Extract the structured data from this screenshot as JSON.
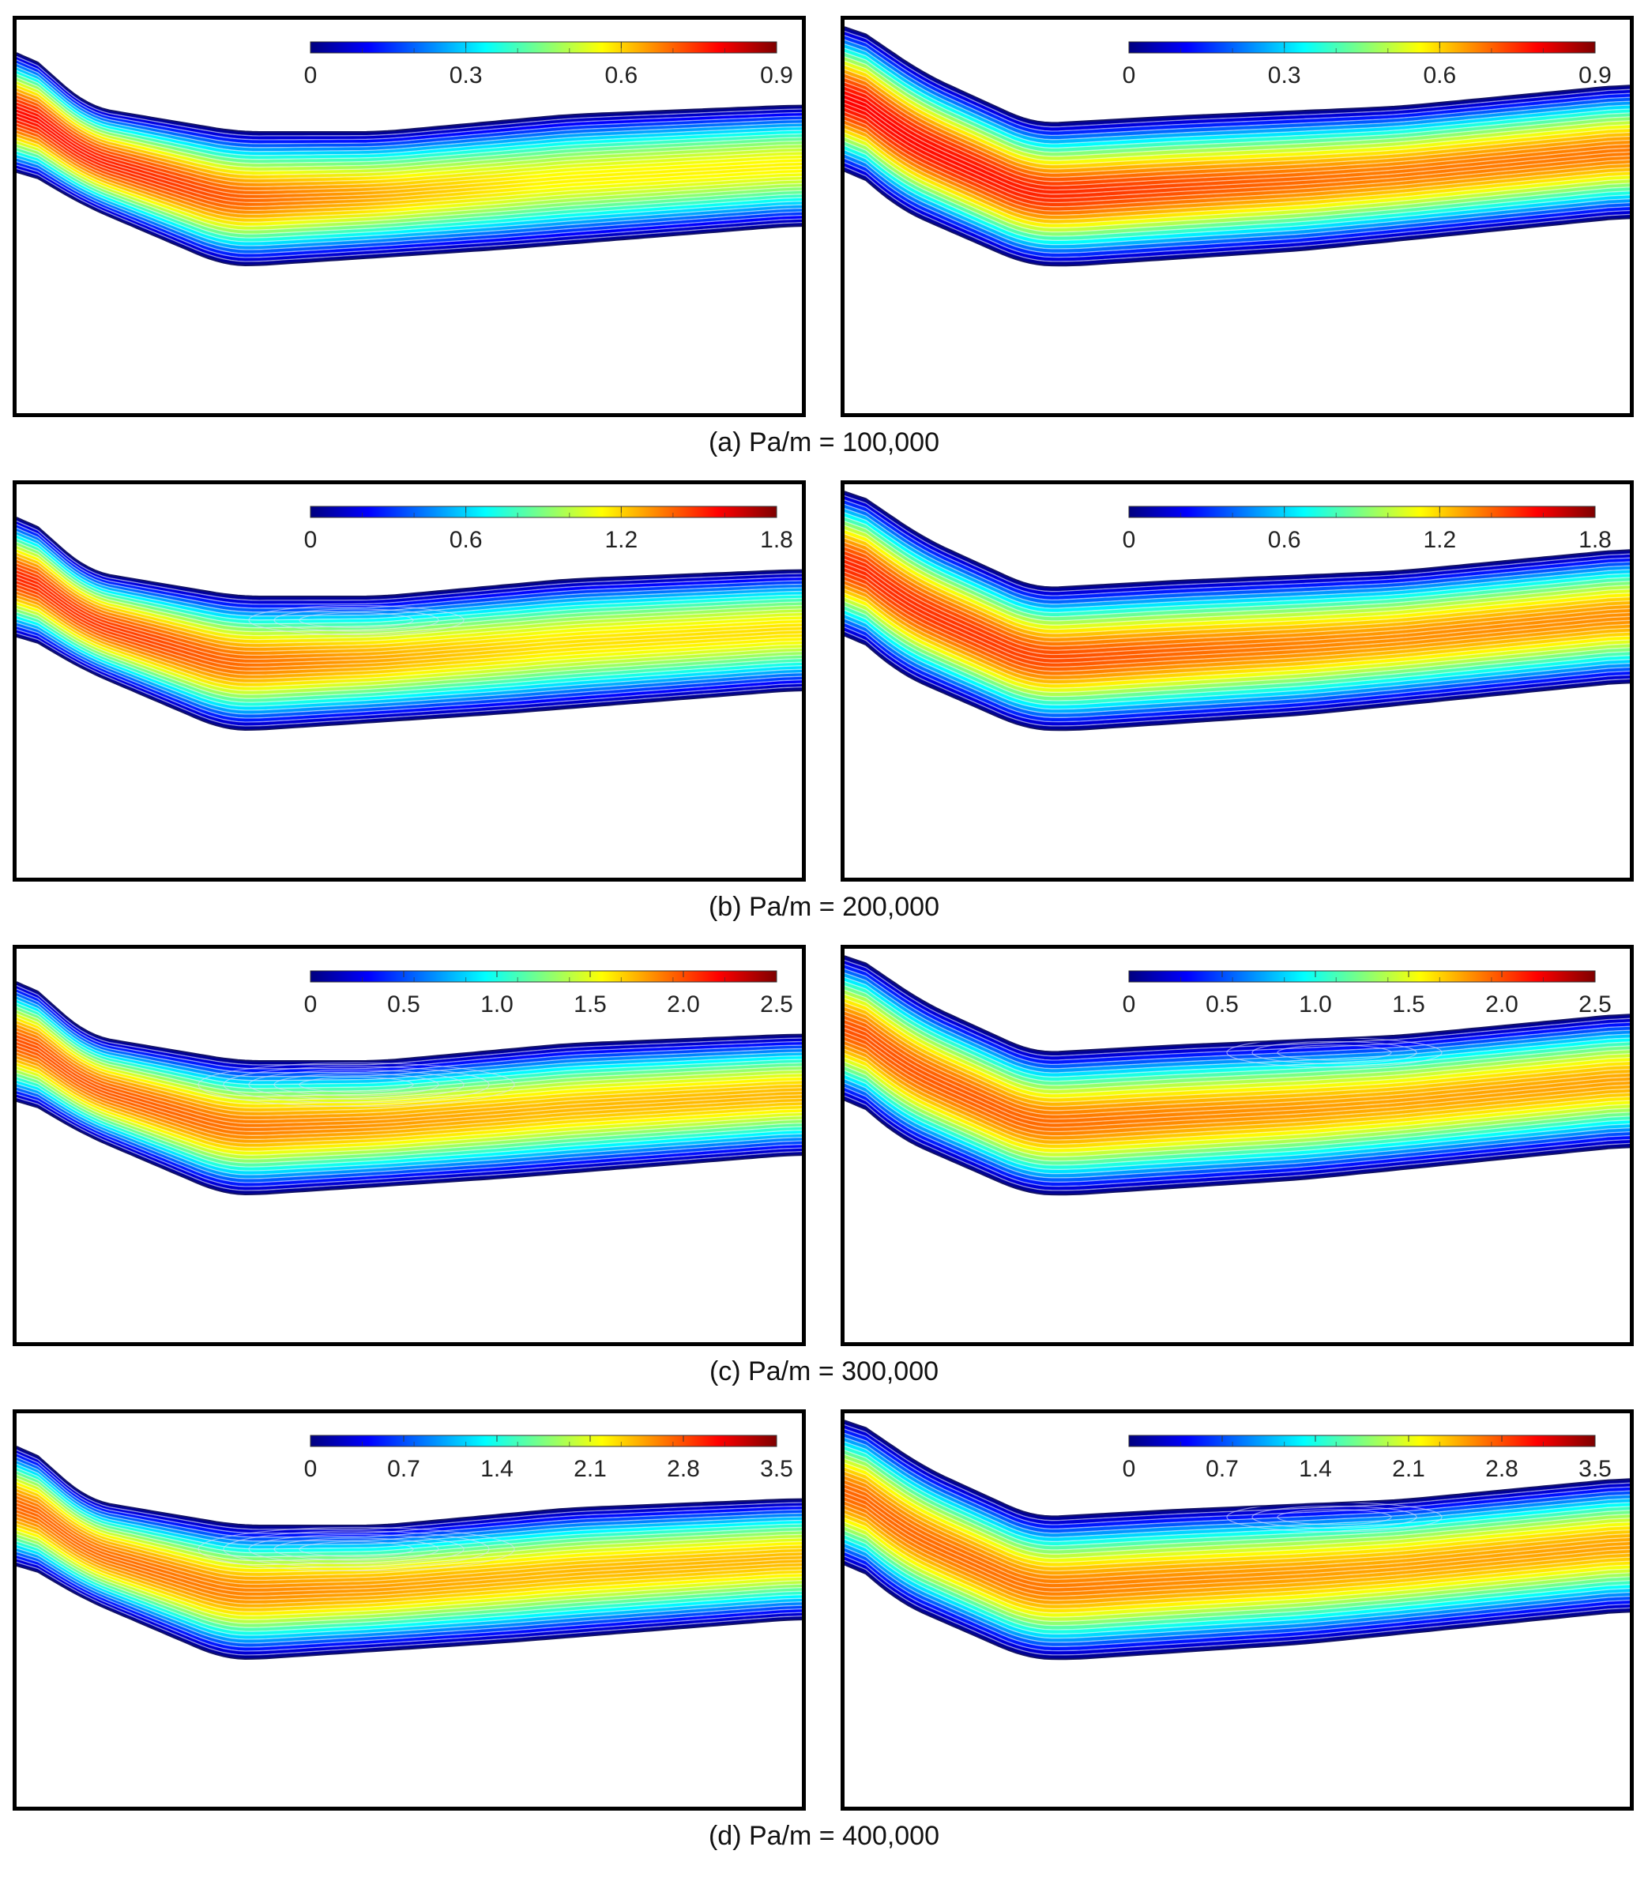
{
  "colormap": {
    "name": "jet",
    "stops": [
      "#00007f",
      "#0000ff",
      "#007fff",
      "#00ffff",
      "#7fff7f",
      "#ffff00",
      "#ff7f00",
      "#ff0000",
      "#7f0000"
    ]
  },
  "rows": [
    {
      "caption": "(a) Pa/m = 100,000",
      "ticks": [
        "0",
        "0.3",
        "0.6",
        "0.9"
      ],
      "range": [
        0,
        0.9
      ],
      "left": {
        "peak_level": 0.85,
        "core_level": 0.62,
        "vortex": 0
      },
      "right": {
        "peak_level": 0.86,
        "core_level": 0.74,
        "vortex": 0
      }
    },
    {
      "caption": "(b) Pa/m = 200,000",
      "ticks": [
        "0",
        "0.6",
        "1.2",
        "1.8"
      ],
      "range": [
        0,
        1.8
      ],
      "left": {
        "peak_level": 0.82,
        "core_level": 0.64,
        "vortex": 1
      },
      "right": {
        "peak_level": 0.82,
        "core_level": 0.72,
        "vortex": 0
      }
    },
    {
      "caption": "(c) Pa/m = 300,000",
      "ticks": [
        "0",
        "0.5",
        "1.0",
        "1.5",
        "2.0",
        "2.5"
      ],
      "range": [
        0,
        2.5
      ],
      "left": {
        "peak_level": 0.78,
        "core_level": 0.68,
        "vortex": 2
      },
      "right": {
        "peak_level": 0.78,
        "core_level": 0.7,
        "vortex": 1
      }
    },
    {
      "caption": "(d) Pa/m = 400,000",
      "ticks": [
        "0",
        "0.7",
        "1.4",
        "2.1",
        "2.8",
        "3.5"
      ],
      "range": [
        0,
        3.5
      ],
      "left": {
        "peak_level": 0.76,
        "core_level": 0.68,
        "vortex": 2
      },
      "right": {
        "peak_level": 0.76,
        "core_level": 0.7,
        "vortex": 1
      }
    }
  ]
}
